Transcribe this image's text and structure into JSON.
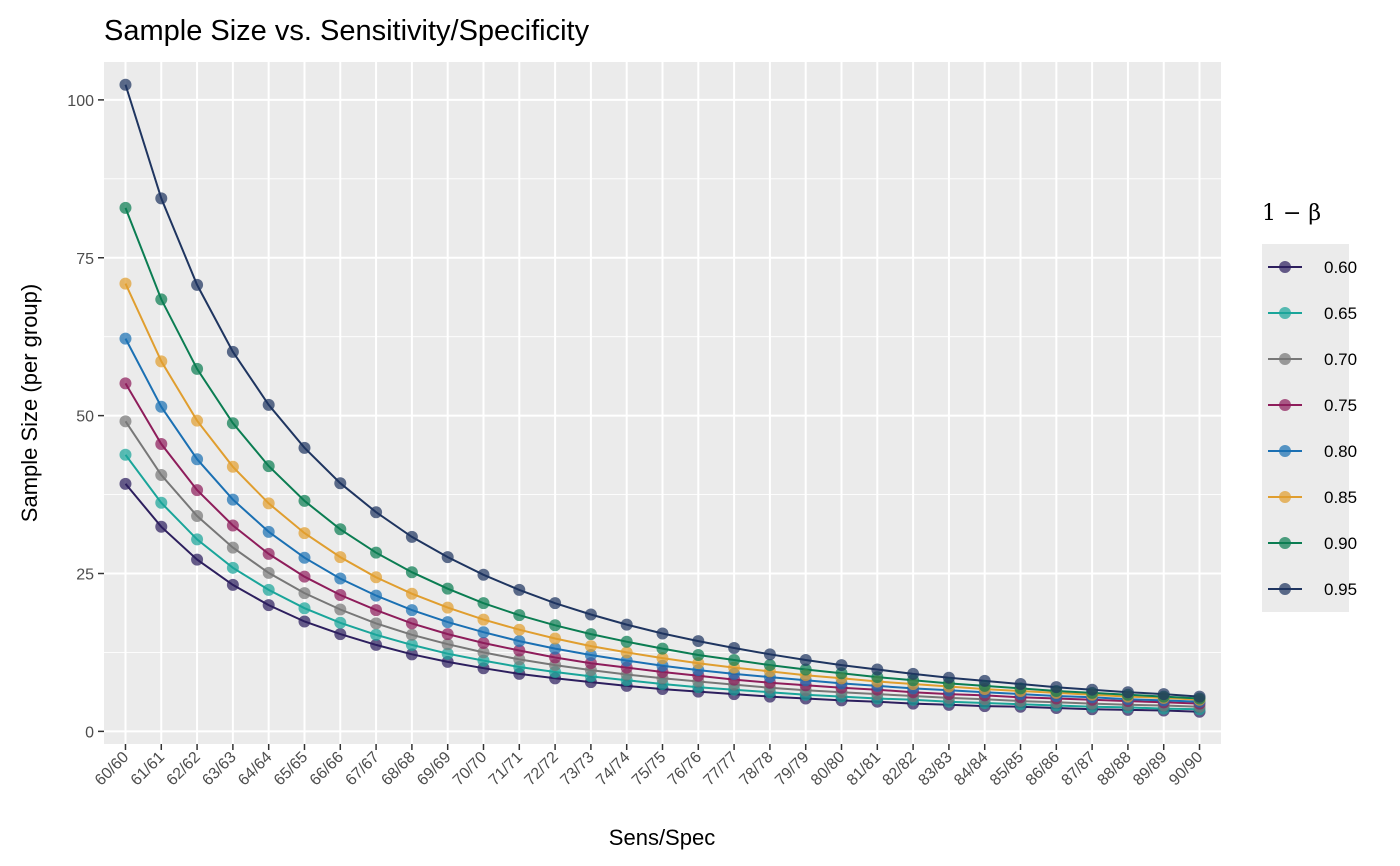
{
  "chart_data": {
    "type": "line",
    "title": "Sample Size vs. Sensitivity/Specificity",
    "xlabel": "Sens/Spec",
    "ylabel": "Sample Size (per group)",
    "categories": [
      "60/60",
      "61/61",
      "62/62",
      "63/63",
      "64/64",
      "65/65",
      "66/66",
      "67/67",
      "68/68",
      "69/69",
      "70/70",
      "71/71",
      "72/72",
      "73/73",
      "74/74",
      "75/75",
      "76/76",
      "77/77",
      "78/78",
      "79/79",
      "80/80",
      "81/81",
      "82/82",
      "83/83",
      "84/84",
      "85/85",
      "86/86",
      "87/87",
      "88/88",
      "89/89",
      "90/90"
    ],
    "ylim": [
      -2,
      106
    ],
    "yticks": [
      0,
      25,
      50,
      75,
      100
    ],
    "grid": true,
    "legend": {
      "title": "1 − β",
      "position": "right"
    },
    "series": [
      {
        "name": "0.60",
        "color": "#2d1f5e",
        "values": [
          39.2,
          32.4,
          27.2,
          23.2,
          20.0,
          17.4,
          15.4,
          13.7,
          12.2,
          11.0,
          10.0,
          9.1,
          8.4,
          7.8,
          7.2,
          6.7,
          6.3,
          5.9,
          5.5,
          5.2,
          4.9,
          4.7,
          4.4,
          4.2,
          4.0,
          3.9,
          3.7,
          3.5,
          3.4,
          3.3,
          3.1
        ]
      },
      {
        "name": "0.65",
        "color": "#1aa59a",
        "values": [
          43.8,
          36.2,
          30.4,
          25.9,
          22.4,
          19.5,
          17.2,
          15.3,
          13.7,
          12.3,
          11.2,
          10.2,
          9.4,
          8.7,
          8.1,
          7.5,
          7.0,
          6.6,
          6.2,
          5.8,
          5.5,
          5.2,
          5.0,
          4.7,
          4.5,
          4.3,
          4.1,
          3.9,
          3.8,
          3.6,
          3.5
        ]
      },
      {
        "name": "0.70",
        "color": "#777777",
        "values": [
          49.1,
          40.6,
          34.1,
          29.1,
          25.1,
          21.9,
          19.3,
          17.1,
          15.3,
          13.8,
          12.5,
          11.4,
          10.5,
          9.7,
          9.0,
          8.4,
          7.9,
          7.4,
          6.9,
          6.5,
          6.2,
          5.9,
          5.6,
          5.3,
          5.1,
          4.8,
          4.6,
          4.4,
          4.2,
          4.1,
          3.9
        ]
      },
      {
        "name": "0.75",
        "color": "#8e1d5b",
        "values": [
          55.1,
          45.5,
          38.2,
          32.6,
          28.1,
          24.5,
          21.6,
          19.2,
          17.1,
          15.4,
          14.0,
          12.8,
          11.7,
          10.8,
          10.1,
          9.4,
          8.8,
          8.2,
          7.7,
          7.3,
          6.9,
          6.6,
          6.2,
          5.9,
          5.7,
          5.4,
          5.2,
          5.0,
          4.8,
          4.6,
          4.4
        ]
      },
      {
        "name": "0.80",
        "color": "#1b70b3",
        "values": [
          62.2,
          51.4,
          43.1,
          36.7,
          31.6,
          27.5,
          24.2,
          21.5,
          19.2,
          17.3,
          15.7,
          14.3,
          13.1,
          12.1,
          11.2,
          10.4,
          9.7,
          9.1,
          8.6,
          8.1,
          7.6,
          7.2,
          6.8,
          6.5,
          6.2,
          5.9,
          5.6,
          5.4,
          5.1,
          4.9,
          4.7
        ]
      },
      {
        "name": "0.85",
        "color": "#e09e2f",
        "values": [
          70.9,
          58.6,
          49.2,
          41.9,
          36.1,
          31.4,
          27.6,
          24.4,
          21.8,
          19.6,
          17.7,
          16.1,
          14.7,
          13.5,
          12.5,
          11.6,
          10.8,
          10.1,
          9.5,
          8.9,
          8.4,
          7.9,
          7.5,
          7.1,
          6.7,
          6.4,
          6.1,
          5.8,
          5.5,
          5.3,
          5.0
        ]
      },
      {
        "name": "0.90",
        "color": "#0b7d52",
        "values": [
          82.9,
          68.4,
          57.4,
          48.8,
          42.0,
          36.5,
          32.0,
          28.3,
          25.2,
          22.6,
          20.3,
          18.4,
          16.8,
          15.4,
          14.2,
          13.1,
          12.1,
          11.3,
          10.5,
          9.8,
          9.2,
          8.6,
          8.1,
          7.6,
          7.2,
          6.8,
          6.4,
          6.1,
          5.8,
          5.5,
          5.2
        ]
      },
      {
        "name": "0.95",
        "color": "#1f3560",
        "values": [
          102.4,
          84.4,
          70.7,
          60.1,
          51.7,
          44.9,
          39.3,
          34.7,
          30.8,
          27.6,
          24.8,
          22.4,
          20.3,
          18.5,
          16.9,
          15.5,
          14.3,
          13.2,
          12.2,
          11.3,
          10.5,
          9.8,
          9.1,
          8.5,
          8.0,
          7.5,
          7.0,
          6.6,
          6.2,
          5.9,
          5.5
        ]
      }
    ]
  }
}
